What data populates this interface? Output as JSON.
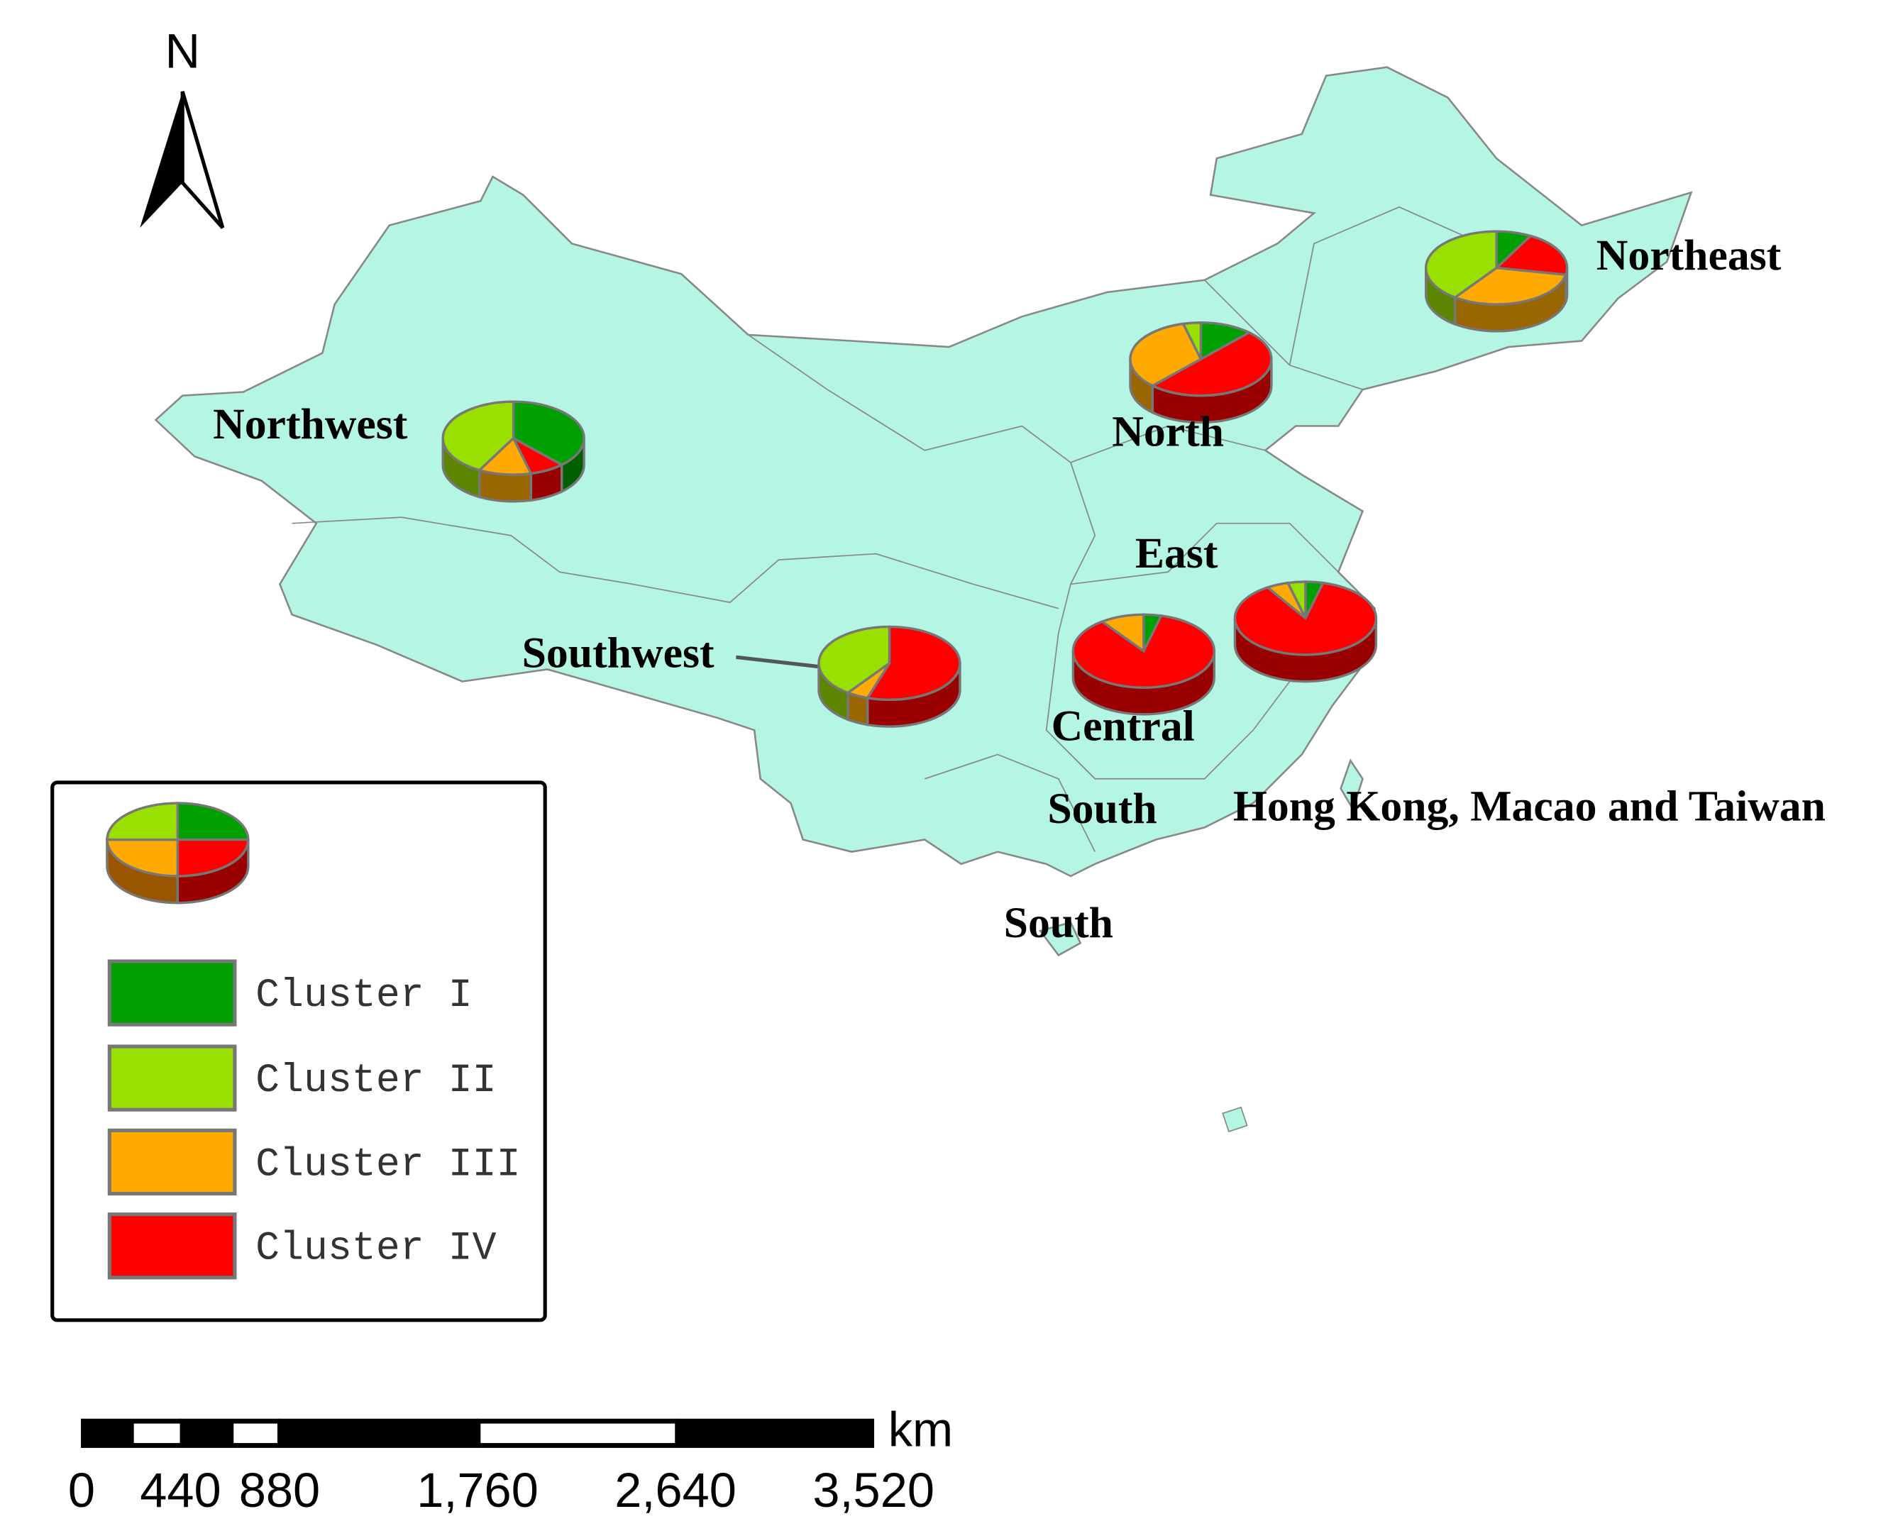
{
  "north_arrow": "N",
  "legend": {
    "items": [
      {
        "label": "Cluster I",
        "color": "#00a000"
      },
      {
        "label": "Cluster II",
        "color": "#99e000"
      },
      {
        "label": "Cluster III",
        "color": "#ffaa00"
      },
      {
        "label": "Cluster IV",
        "color": "#ff0000"
      }
    ]
  },
  "regions": [
    {
      "label": "Northwest",
      "values": [
        38,
        42,
        12,
        8
      ]
    },
    {
      "label": "North",
      "values": [
        12,
        4,
        34,
        50
      ]
    },
    {
      "label": "Northeast",
      "values": [
        8,
        40,
        32,
        20
      ]
    },
    {
      "label": "East",
      "values": [
        4,
        4,
        5,
        87
      ]
    },
    {
      "label": "Central",
      "values": [
        4,
        0,
        10,
        86
      ]
    },
    {
      "label": "Southwest",
      "values": [
        0,
        40,
        5,
        55
      ]
    }
  ],
  "other_labels": [
    "South",
    "Hong Kong, Macao and Taiwan",
    "South"
  ],
  "scale_bar": {
    "unit": "km",
    "xlim": [
      0,
      3520
    ],
    "ticks": [
      0,
      440,
      880,
      {
        "value": 1760,
        "label": "1,760"
      },
      {
        "value": 2640,
        "label": "2,640"
      },
      {
        "value": 3520,
        "label": "3,520"
      }
    ]
  }
}
